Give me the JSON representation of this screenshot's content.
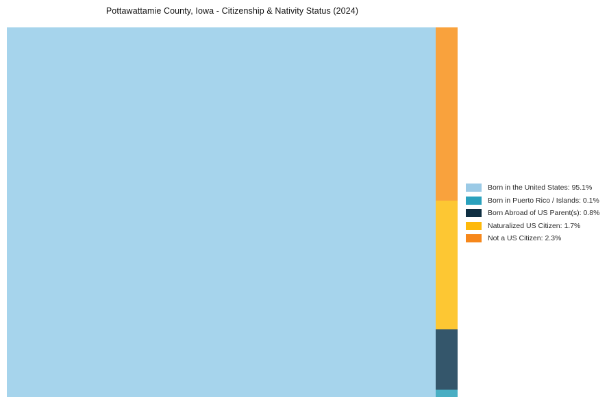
{
  "title": "Pottawattamie County, Iowa - Citizenship & Nativity Status (2024)",
  "chart_data": {
    "type": "treemap",
    "title": "Pottawattamie County, Iowa - Citizenship & Nativity Status (2024)",
    "unit": "%",
    "series": [
      {
        "label": "Born in the United States",
        "value": 95.1,
        "tile_color": "#A6D4EC",
        "legend_color": "#9BCAE6"
      },
      {
        "label": "Born in Puerto Rico / Islands",
        "value": 0.1,
        "tile_color": "#49AEC3",
        "legend_color": "#2AA1BD"
      },
      {
        "label": "Born Abroad of US Parent(s)",
        "value": 0.8,
        "tile_color": "#34566B",
        "legend_color": "#0F2F42"
      },
      {
        "label": "Naturalized US Citizen",
        "value": 1.7,
        "tile_color": "#FDC733",
        "legend_color": "#FEB90B"
      },
      {
        "label": "Not a US Citizen",
        "value": 2.3,
        "tile_color": "#F9A23D",
        "legend_color": "#F6871B"
      }
    ],
    "legend": {
      "position": "right",
      "labels": [
        "Born in the United States: 95.1%",
        "Born in Puerto Rico / Islands: 0.1%",
        "Born Abroad of US Parent(s): 0.8%",
        "Naturalized US Citizen: 1.7%",
        "Not a US Citizen: 2.3%"
      ]
    },
    "layout": {
      "main_tile": "Born in the United States",
      "side_column_top_to_bottom": [
        "Not a US Citizen",
        "Naturalized US Citizen",
        "Born Abroad of US Parent(s)",
        "Born in Puerto Rico / Islands"
      ],
      "background": "#ffffff",
      "gridlines": false
    }
  }
}
